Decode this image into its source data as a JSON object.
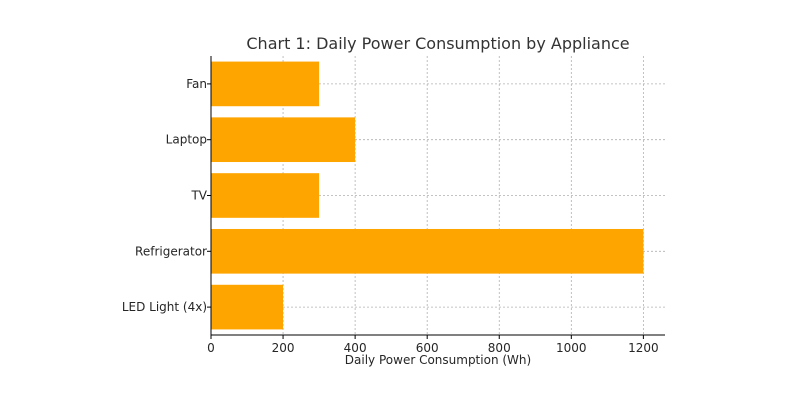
{
  "chart_data": {
    "type": "bar",
    "orientation": "horizontal",
    "title": "Chart 1: Daily Power Consumption by Appliance",
    "xlabel": "Daily Power Consumption (Wh)",
    "ylabel": "",
    "categories": [
      "LED Light (4x)",
      "Refrigerator",
      "TV",
      "Laptop",
      "Fan"
    ],
    "values": [
      200,
      1200,
      300,
      400,
      300
    ],
    "xlim": [
      0,
      1260
    ],
    "xticks": [
      0,
      200,
      400,
      600,
      800,
      1000,
      1200
    ],
    "grid": true,
    "bar_color": "#FFA500"
  }
}
